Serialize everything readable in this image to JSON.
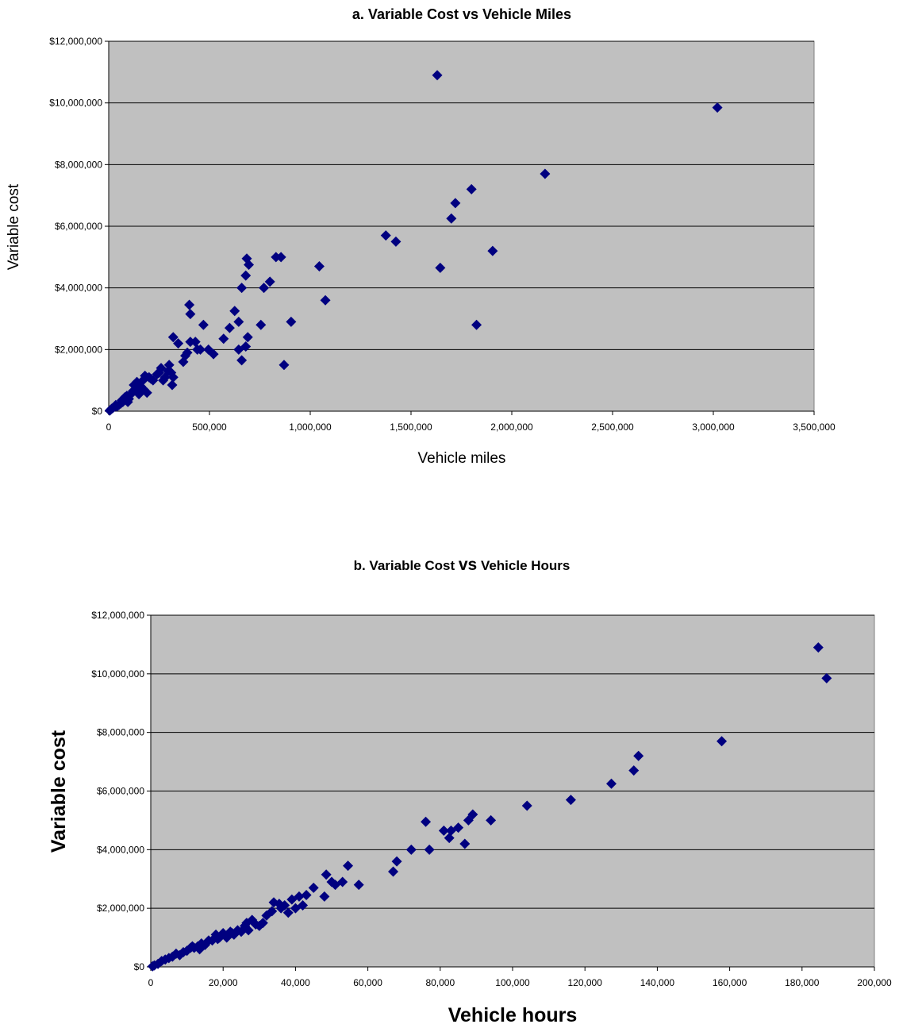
{
  "colors": {
    "plot_bg": "#c0c0c0",
    "marker": "#000080",
    "grid": "#000000",
    "page_bg": "#ffffff"
  },
  "chart_data": [
    {
      "type": "scatter",
      "title": "a.  Variable Cost vs Vehicle Miles",
      "xlabel": "Vehicle miles",
      "ylabel": "Variable cost",
      "xlim": [
        0,
        3500000
      ],
      "ylim": [
        0,
        12000000
      ],
      "x_ticks": [
        "0",
        "500,000",
        "1,000,000",
        "1,500,000",
        "2,000,000",
        "2,500,000",
        "3,000,000",
        "3,500,000"
      ],
      "y_ticks": [
        "$0",
        "$2,000,000",
        "$4,000,000",
        "$6,000,000",
        "$8,000,000",
        "$10,000,000",
        "$12,000,000"
      ],
      "grid": "horizontal",
      "legend": "none",
      "series": [
        {
          "x": [
            1630000,
            3020000,
            2165000,
            1800000,
            1720000,
            1700000,
            1905000,
            1375000,
            1425000,
            1645000,
            1825000,
            1045000,
            1075000,
            905000,
            870000,
            830000,
            855000,
            685000,
            695000,
            680000,
            660000,
            800000,
            770000,
            755000,
            625000,
            645000,
            600000,
            570000,
            690000,
            680000,
            645000,
            660000,
            400000,
            405000,
            470000,
            320000,
            345000,
            390000,
            405000,
            430000,
            440000,
            455000,
            520000,
            495000,
            370000,
            380000,
            300000,
            310000,
            320000,
            280000,
            260000,
            250000,
            270000,
            315000,
            200000,
            220000,
            180000,
            170000,
            190000,
            160000,
            140000,
            130000,
            120000,
            150000,
            110000,
            100000,
            95000,
            80000,
            70000,
            60000,
            50000,
            40000,
            30000,
            20000,
            10000,
            5000,
            210000,
            240000,
            295000,
            175000,
            125000,
            90000,
            65000,
            35000,
            15000
          ],
          "y": [
            10900000,
            9850000,
            7700000,
            7200000,
            6750000,
            6250000,
            5200000,
            5700000,
            5500000,
            4650000,
            2800000,
            4700000,
            3600000,
            2900000,
            1500000,
            5000000,
            5000000,
            4950000,
            4750000,
            4400000,
            4000000,
            4200000,
            4000000,
            2800000,
            3250000,
            2900000,
            2700000,
            2350000,
            2400000,
            2100000,
            2000000,
            1650000,
            3450000,
            3150000,
            2800000,
            2400000,
            2200000,
            1900000,
            2250000,
            2250000,
            2000000,
            2000000,
            1850000,
            2000000,
            1600000,
            1800000,
            1500000,
            1250000,
            1100000,
            1100000,
            1400000,
            1250000,
            1000000,
            850000,
            1100000,
            1000000,
            1150000,
            1000000,
            600000,
            800000,
            950000,
            700000,
            650000,
            550000,
            550000,
            400000,
            300000,
            450000,
            300000,
            250000,
            200000,
            150000,
            150000,
            100000,
            50000,
            20000,
            1050000,
            1200000,
            1300000,
            700000,
            850000,
            500000,
            350000,
            200000,
            80000
          ]
        }
      ]
    },
    {
      "type": "scatter",
      "title_parts": [
        "b. Variable Cost ",
        "vs",
        " Vehicle Hours"
      ],
      "xlabel": "Vehicle hours",
      "ylabel": "Variable cost",
      "xlim": [
        0,
        200000
      ],
      "ylim": [
        0,
        12000000
      ],
      "x_ticks": [
        "0",
        "20,000",
        "40,000",
        "60,000",
        "80,000",
        "100,000",
        "120,000",
        "140,000",
        "160,000",
        "180,000",
        "200,000"
      ],
      "y_ticks": [
        "$0",
        "$2,000,000",
        "$4,000,000",
        "$6,000,000",
        "$8,000,000",
        "$10,000,000",
        "$12,000,000"
      ],
      "grid": "horizontal",
      "legend": "none",
      "series": [
        {
          "x": [
            184500,
            186800,
            157800,
            134800,
            133500,
            127300,
            116100,
            104000,
            94000,
            89000,
            87800,
            86800,
            85000,
            83000,
            82500,
            81000,
            76000,
            77000,
            72000,
            68000,
            67000,
            57500,
            54500,
            53000,
            51000,
            50000,
            48500,
            48000,
            45000,
            42000,
            41000,
            40000,
            39000,
            38000,
            37000,
            35500,
            34000,
            33500,
            32000,
            31000,
            30000,
            28000,
            27000,
            26500,
            26000,
            25000,
            24000,
            23000,
            22000,
            21000,
            20000,
            19000,
            18000,
            17000,
            16000,
            15000,
            14000,
            13000,
            12000,
            11000,
            10000,
            9000,
            8000,
            7000,
            6000,
            5000,
            4000,
            3000,
            2000,
            1000,
            500,
            29000,
            36000,
            43000,
            13500,
            18500,
            22500,
            11500
          ],
          "y": [
            10900000,
            9850000,
            7700000,
            7200000,
            6700000,
            6250000,
            5700000,
            5500000,
            5000000,
            5200000,
            5000000,
            4200000,
            4750000,
            4650000,
            4400000,
            4650000,
            4950000,
            4000000,
            4000000,
            3600000,
            3250000,
            2800000,
            3450000,
            2900000,
            2800000,
            2900000,
            3150000,
            2400000,
            2700000,
            2100000,
            2400000,
            2000000,
            2300000,
            1850000,
            2100000,
            2150000,
            2200000,
            1900000,
            1750000,
            1500000,
            1400000,
            1600000,
            1250000,
            1500000,
            1400000,
            1200000,
            1250000,
            1100000,
            1200000,
            1000000,
            1150000,
            1000000,
            1100000,
            900000,
            900000,
            750000,
            800000,
            700000,
            650000,
            650000,
            550000,
            500000,
            400000,
            450000,
            350000,
            300000,
            250000,
            200000,
            100000,
            50000,
            20000,
            1450000,
            2000000,
            2450000,
            600000,
            950000,
            1150000,
            700000
          ]
        }
      ]
    }
  ]
}
